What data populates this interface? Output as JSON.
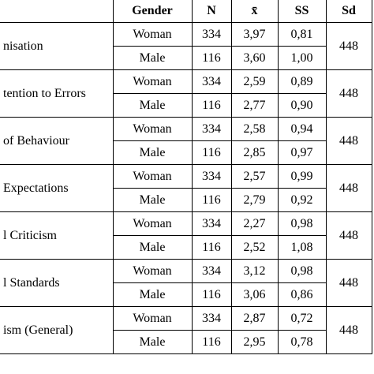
{
  "header": {
    "columns": [
      "Gender",
      "N",
      "x̄",
      "SS",
      "Sd"
    ]
  },
  "groups": [
    {
      "label": "nisation",
      "rows": [
        {
          "gender": "Woman",
          "n": 334,
          "mean": "3,97",
          "ss": "0,81"
        },
        {
          "gender": "Male",
          "n": 116,
          "mean": "3,60",
          "ss": "1,00"
        }
      ],
      "sd": 448
    },
    {
      "label": "tention to Errors",
      "rows": [
        {
          "gender": "Woman",
          "n": 334,
          "mean": "2,59",
          "ss": "0,89"
        },
        {
          "gender": "Male",
          "n": 116,
          "mean": "2,77",
          "ss": "0,90"
        }
      ],
      "sd": 448
    },
    {
      "label": "of Behaviour",
      "rows": [
        {
          "gender": "Woman",
          "n": 334,
          "mean": "2,58",
          "ss": "0,94"
        },
        {
          "gender": "Male",
          "n": 116,
          "mean": "2,85",
          "ss": "0,97"
        }
      ],
      "sd": 448
    },
    {
      "label": "Expectations",
      "rows": [
        {
          "gender": "Woman",
          "n": 334,
          "mean": "2,57",
          "ss": "0,99"
        },
        {
          "gender": "Male",
          "n": 116,
          "mean": "2,79",
          "ss": "0,92"
        }
      ],
      "sd": 448
    },
    {
      "label": "l Criticism",
      "rows": [
        {
          "gender": "Woman",
          "n": 334,
          "mean": "2,27",
          "ss": "0,98"
        },
        {
          "gender": "Male",
          "n": 116,
          "mean": "2,52",
          "ss": "1,08"
        }
      ],
      "sd": 448
    },
    {
      "label": "l Standards",
      "rows": [
        {
          "gender": "Woman",
          "n": 334,
          "mean": "3,12",
          "ss": "0,98"
        },
        {
          "gender": "Male",
          "n": 116,
          "mean": "3,06",
          "ss": "0,86"
        }
      ],
      "sd": 448
    },
    {
      "label": "ism (General)",
      "rows": [
        {
          "gender": "Woman",
          "n": 334,
          "mean": "2,87",
          "ss": "0,72"
        },
        {
          "gender": "Male",
          "n": 116,
          "mean": "2,95",
          "ss": "0,78"
        }
      ],
      "sd": 448
    }
  ]
}
